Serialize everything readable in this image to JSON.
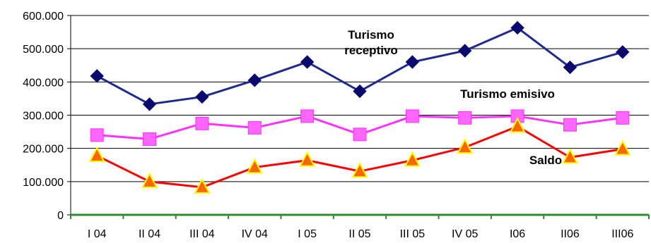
{
  "chart_data": {
    "type": "line",
    "title": "",
    "xlabel": "",
    "ylabel": "",
    "categories": [
      "I 04",
      "II 04",
      "III 04",
      "IV 04",
      "I 05",
      "II 05",
      "III 05",
      "IV 05",
      "I06",
      "II06",
      "III06"
    ],
    "ylim": [
      0,
      600000
    ],
    "y_ticks": [
      {
        "value": 0,
        "label": "0"
      },
      {
        "value": 100000,
        "label": "100.000"
      },
      {
        "value": 200000,
        "label": "200.000"
      },
      {
        "value": 300000,
        "label": "300.000"
      },
      {
        "value": 400000,
        "label": "400.000"
      },
      {
        "value": 500000,
        "label": "500.000"
      },
      {
        "value": 600000,
        "label": "600.000"
      }
    ],
    "grid": true,
    "series": [
      {
        "name": "Turismo receptivo",
        "color": "#1F2A8C",
        "marker": "diamond",
        "marker_color": "#0A0A6E",
        "values": [
          418000,
          333000,
          355000,
          405000,
          460000,
          372000,
          460000,
          494000,
          563000,
          444000,
          490000
        ]
      },
      {
        "name": "Turismo emisivo",
        "color": "#FF33FF",
        "marker": "square",
        "marker_color": "#FF66FF",
        "values": [
          240000,
          228000,
          275000,
          262000,
          297000,
          242000,
          297000,
          292000,
          297000,
          271000,
          292000
        ]
      },
      {
        "name": "Saldo",
        "color": "#FF0000",
        "marker": "triangle",
        "marker_color": "#FF6600",
        "marker_outline": "#FFFF00",
        "values": [
          178000,
          100000,
          83000,
          143000,
          164000,
          131000,
          164000,
          203000,
          266000,
          173000,
          198000
        ]
      }
    ],
    "annotations": [
      {
        "lines": [
          "Turismo",
          "receptivo"
        ],
        "series": "Turismo receptivo"
      },
      {
        "lines": [
          "Turismo emisivo"
        ],
        "series": "Turismo emisivo"
      },
      {
        "lines": [
          "Saldo"
        ],
        "series": "Saldo"
      }
    ],
    "colors": {
      "grid": "#000000",
      "x_axis": "#2E8B2E",
      "y_axis": "#000000",
      "background": "#FFFFFF"
    }
  }
}
